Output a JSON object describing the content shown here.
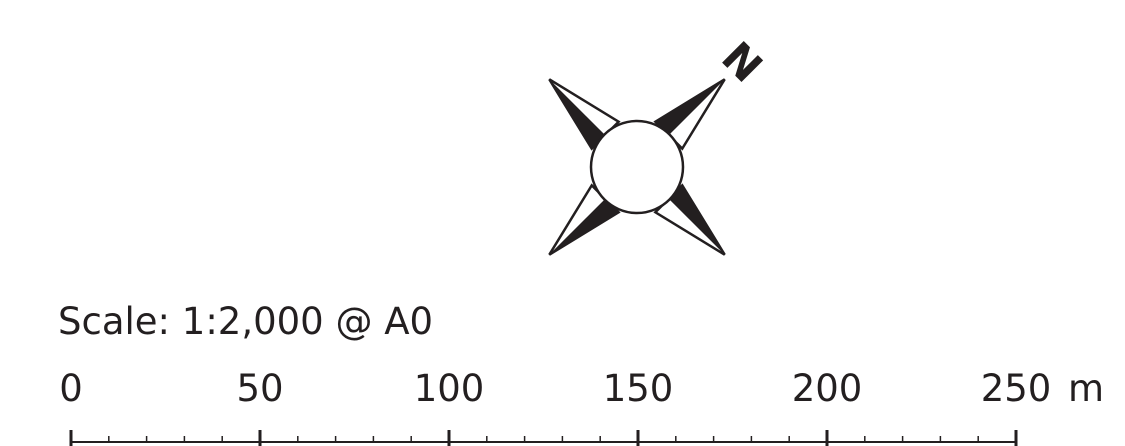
{
  "north_arrow": {
    "label": "N",
    "icon": "compass-rose-icon",
    "rotation_deg": 45
  },
  "scale": {
    "title": "Scale: 1:2,000 @ A0",
    "unit": "m",
    "ticks": [
      "0",
      "50",
      "100",
      "150",
      "200",
      "250"
    ],
    "minor_divisions_per_segment": 5,
    "color": "#231f20"
  }
}
